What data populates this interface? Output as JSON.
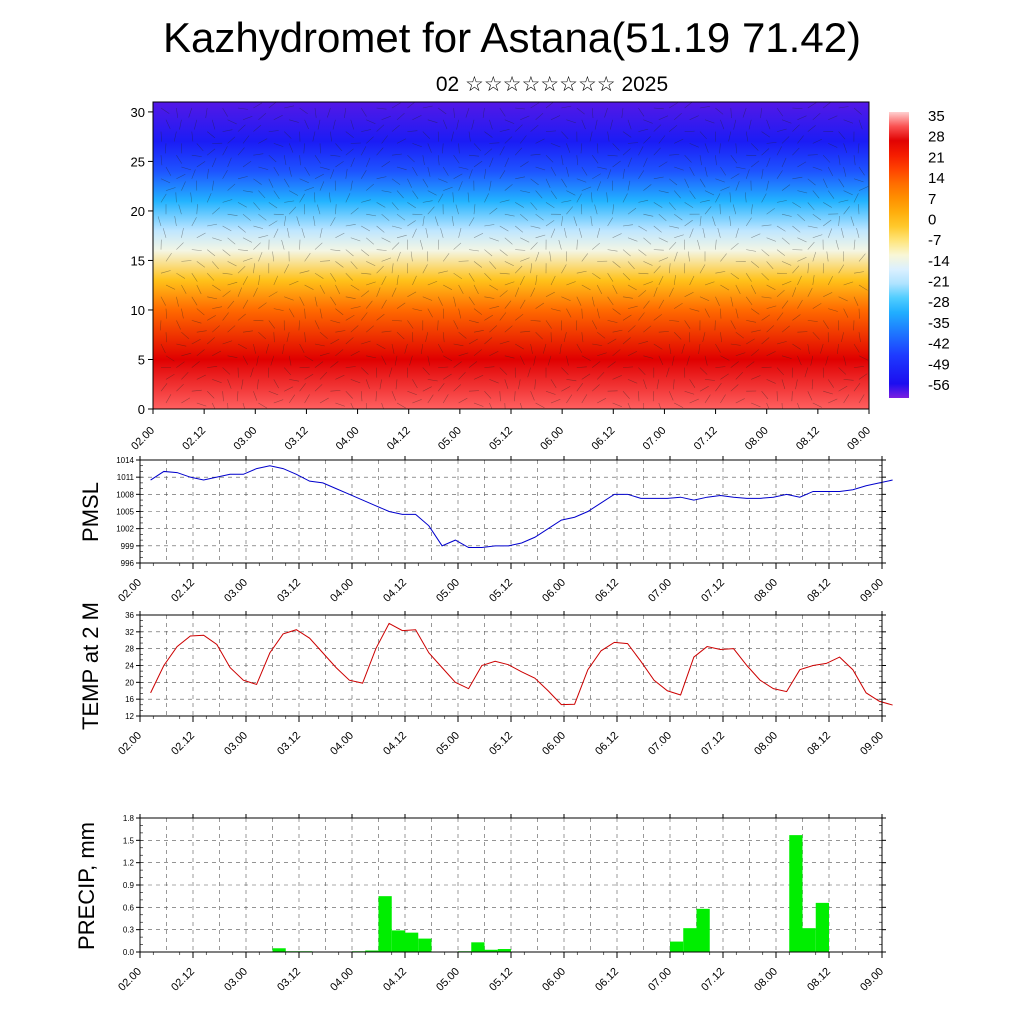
{
  "title": "Kazhydromet for Astana(51.19 71.42)",
  "subtitle": "02 ☆☆☆☆☆☆☆☆ 2025",
  "chart_data": [
    {
      "type": "heatmap",
      "name": "cross-section",
      "x_ticks": [
        "02.00",
        "02.12",
        "03.00",
        "03.12",
        "04.00",
        "04.12",
        "05.00",
        "05.12",
        "06.00",
        "06.12",
        "07.00",
        "07.12",
        "08.00",
        "08.12",
        "09.00"
      ],
      "y_ticks": [
        "0",
        "5",
        "10",
        "15",
        "20",
        "25",
        "30"
      ],
      "ylim": [
        0,
        31
      ],
      "colorbar_labels": [
        "35",
        "28",
        "21",
        "14",
        "7",
        "0",
        "-7",
        "-14",
        "-21",
        "-28",
        "-35",
        "-42",
        "-49",
        "-56"
      ],
      "colorbar_range": [
        -60,
        38
      ],
      "temperature_profile_by_height": [
        [
          0,
          34
        ],
        [
          5,
          28
        ],
        [
          10,
          14
        ],
        [
          13,
          0
        ],
        [
          16,
          -12
        ],
        [
          18,
          -20
        ],
        [
          21,
          -30
        ],
        [
          24,
          -42
        ],
        [
          27,
          -52
        ],
        [
          31,
          -58
        ]
      ]
    },
    {
      "type": "line",
      "name": "pmsl",
      "ylabel": "PMSL",
      "ylim": [
        996,
        1014
      ],
      "y_ticks": [
        "1014",
        "1011",
        "1008",
        "1005",
        "1002",
        "999",
        "996"
      ],
      "x_ticks": [
        "02.00",
        "02.12",
        "03.00",
        "03.12",
        "04.00",
        "04.12",
        "05.00",
        "05.12",
        "06.00",
        "06.12",
        "07.00",
        "07.12",
        "08.00",
        "08.12",
        "09.00"
      ],
      "color": "#0000cc",
      "x_days": [
        2.0,
        2.125,
        2.25,
        2.375,
        2.5,
        2.625,
        2.75,
        2.875,
        3.0,
        3.125,
        3.25,
        3.375,
        3.5,
        3.625,
        3.75,
        3.875,
        4.0,
        4.125,
        4.25,
        4.375,
        4.5,
        4.625,
        4.75,
        4.875,
        5.0,
        5.125,
        5.25,
        5.375,
        5.5,
        5.625,
        5.75,
        5.875,
        6.0,
        6.125,
        6.25,
        6.375,
        6.5,
        6.625,
        6.75,
        6.875,
        7.0,
        7.125,
        7.25,
        7.375,
        7.5,
        7.625,
        7.75,
        7.875,
        8.0,
        8.125,
        8.25,
        8.375,
        8.5,
        8.625,
        8.75,
        8.875,
        9.0
      ],
      "values": [
        1010.5,
        1012.0,
        1011.8,
        1011.0,
        1010.5,
        1011.0,
        1011.5,
        1011.5,
        1012.5,
        1013.0,
        1012.5,
        1011.5,
        1010.3,
        1010.0,
        1009.0,
        1008.0,
        1007.0,
        1006.0,
        1005.0,
        1004.5,
        1004.5,
        1002.5,
        999.0,
        1000.0,
        998.7,
        998.7,
        999.0,
        999.0,
        999.5,
        1000.5,
        1002.0,
        1003.5,
        1004.0,
        1005.0,
        1006.5,
        1008.0,
        1008.0,
        1007.3,
        1007.3,
        1007.3,
        1007.5,
        1007.0,
        1007.5,
        1007.8,
        1007.5,
        1007.3,
        1007.3,
        1007.5,
        1008.0,
        1007.5,
        1008.5,
        1008.5,
        1008.5,
        1008.8,
        1009.5,
        1010.0,
        1010.5
      ]
    },
    {
      "type": "line",
      "name": "temp2m",
      "ylabel": "TEMP at 2 M",
      "ylim": [
        12,
        36
      ],
      "y_ticks": [
        "36",
        "32",
        "28",
        "24",
        "20",
        "16",
        "12"
      ],
      "x_ticks": [
        "02.00",
        "02.12",
        "03.00",
        "03.12",
        "04.00",
        "04.12",
        "05.00",
        "05.12",
        "06.00",
        "06.12",
        "07.00",
        "07.12",
        "08.00",
        "08.12",
        "09.00"
      ],
      "color": "#cc0000",
      "x_days": [
        2.0,
        2.125,
        2.25,
        2.375,
        2.5,
        2.625,
        2.75,
        2.875,
        3.0,
        3.125,
        3.25,
        3.375,
        3.5,
        3.625,
        3.75,
        3.875,
        4.0,
        4.125,
        4.25,
        4.375,
        4.5,
        4.625,
        4.75,
        4.875,
        5.0,
        5.125,
        5.25,
        5.375,
        5.5,
        5.625,
        5.75,
        5.875,
        6.0,
        6.125,
        6.25,
        6.375,
        6.5,
        6.625,
        6.75,
        6.875,
        7.0,
        7.125,
        7.25,
        7.375,
        7.5,
        7.625,
        7.75,
        7.875,
        8.0,
        8.125,
        8.25,
        8.375,
        8.5,
        8.625,
        8.75,
        8.875,
        9.0
      ],
      "values": [
        17.5,
        24.0,
        28.5,
        31.0,
        31.2,
        29.0,
        23.5,
        20.5,
        19.5,
        27.0,
        31.5,
        32.5,
        30.5,
        27.0,
        23.5,
        20.5,
        19.8,
        28.0,
        34.0,
        32.3,
        32.5,
        27.0,
        23.5,
        20.0,
        18.5,
        24.0,
        25.0,
        24.2,
        22.5,
        21.0,
        18.0,
        14.7,
        14.8,
        23.0,
        27.5,
        29.5,
        29.2,
        25.0,
        20.5,
        18.0,
        17.0,
        26.0,
        28.5,
        27.8,
        28.0,
        24.0,
        20.5,
        18.5,
        17.8,
        23.0,
        24.0,
        24.5,
        26.0,
        23.0,
        17.5,
        15.5,
        14.6
      ]
    },
    {
      "type": "bar",
      "name": "precip",
      "ylabel": "PRECIP, mm",
      "ylim": [
        0,
        1.8
      ],
      "y_ticks": [
        "1.8",
        "1.5",
        "1.2",
        "0.9",
        "0.6",
        "0.3",
        "0.0"
      ],
      "x_ticks": [
        "02.00",
        "02.12",
        "03.00",
        "03.12",
        "04.00",
        "04.12",
        "05.00",
        "05.12",
        "06.00",
        "06.12",
        "07.00",
        "07.12",
        "08.00",
        "08.12",
        "09.00"
      ],
      "color": "#00ee00",
      "bar_width_days": 0.125,
      "bars": [
        [
          3.25,
          0.05
        ],
        [
          3.375,
          0.01
        ],
        [
          3.5,
          0.01
        ],
        [
          4.0,
          0.01
        ],
        [
          4.125,
          0.02
        ],
        [
          4.25,
          0.75
        ],
        [
          4.375,
          0.29
        ],
        [
          4.5,
          0.26
        ],
        [
          4.625,
          0.18
        ],
        [
          5.0,
          0.01
        ],
        [
          5.125,
          0.13
        ],
        [
          5.25,
          0.03
        ],
        [
          5.375,
          0.04
        ],
        [
          7.0,
          0.14
        ],
        [
          7.125,
          0.32
        ],
        [
          7.25,
          0.58
        ],
        [
          8.125,
          1.57
        ],
        [
          8.25,
          0.32
        ],
        [
          8.375,
          0.66
        ]
      ]
    }
  ]
}
